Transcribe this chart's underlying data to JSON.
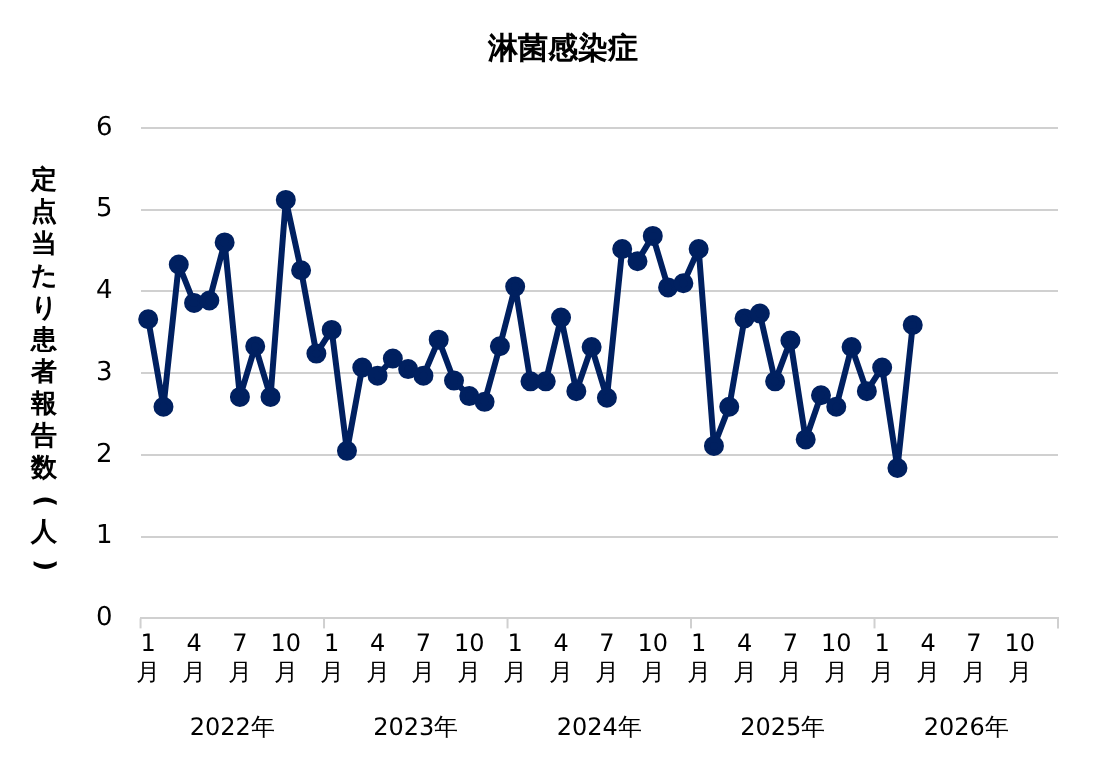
{
  "chart_data": {
    "type": "line",
    "title": "淋菌感染症",
    "ylabel": "定点当たり患者報告数(人)",
    "categories": [
      "1月",
      null,
      null,
      "4月",
      null,
      null,
      "7月",
      null,
      null,
      "10月",
      null,
      null,
      "1月",
      null,
      null,
      "4月",
      null,
      null,
      "7月",
      null,
      null,
      "10月",
      null,
      null,
      "1月",
      null,
      null,
      "4月",
      null,
      null,
      "7月",
      null,
      null,
      "10月",
      null,
      null,
      "1月",
      null,
      null,
      "4月",
      null,
      null,
      "7月",
      null,
      null,
      "10月",
      null,
      null,
      "1月",
      null,
      null,
      "4月",
      null,
      null,
      "7月",
      null,
      null,
      "10月",
      null,
      null
    ],
    "annotations": [
      "2022年",
      "2023年",
      "2024年",
      "2025年",
      "2026年"
    ],
    "series": [
      {
        "color": "#002060",
        "values": [
          3.66,
          2.59,
          4.33,
          3.86,
          3.89,
          4.6,
          2.71,
          3.33,
          2.71,
          5.12,
          4.26,
          3.24,
          3.53,
          2.05,
          3.07,
          2.97,
          3.18,
          3.05,
          2.97,
          3.41,
          2.91,
          2.72,
          2.65,
          3.33,
          4.06,
          2.9,
          2.9,
          3.68,
          2.78,
          3.32,
          2.7,
          4.52,
          4.37,
          4.68,
          4.05,
          4.1,
          4.52,
          2.11,
          2.59,
          3.67,
          3.73,
          2.9,
          3.4,
          2.19,
          2.73,
          2.59,
          3.32,
          2.78,
          3.07,
          1.84,
          3.59,
          null,
          null,
          null,
          null,
          null,
          null,
          null,
          null,
          null
        ]
      }
    ],
    "ylim": [
      0,
      6
    ],
    "yticks": [
      0,
      1,
      2,
      3,
      4,
      5,
      6
    ],
    "grid": "y",
    "marker": "circle",
    "line_style": "solid",
    "legend": false
  }
}
